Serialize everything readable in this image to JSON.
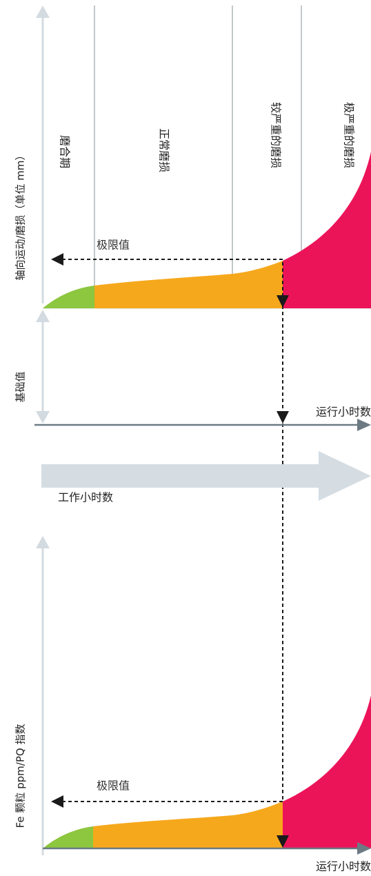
{
  "colors": {
    "run_in": "#8dc63f",
    "normal": "#f6a81c",
    "severe": "#ec1459",
    "axis_light": "#d3dbe1",
    "axis_dark": "#6c7a84",
    "divider": "#9aa3a8",
    "band": "#d5dde3",
    "dashed": "#1a1a1a"
  },
  "top_panel": {
    "y_axis_label": "轴向运动/磨损（单位 mm）",
    "phases": [
      "磨合期",
      "正常磨损",
      "较严重的磨损",
      "极严重的磨损"
    ],
    "limit_label": "极限值"
  },
  "middle_panel": {
    "y_axis_label": "基础值",
    "x_axis_label": "运行小时数"
  },
  "work_arrow_label": "工作小时数",
  "bottom_panel": {
    "y_axis_label": "Fe 颗粒 ppm/PQ 指数",
    "limit_label": "极限值",
    "x_axis_label": "运行小时数"
  }
}
